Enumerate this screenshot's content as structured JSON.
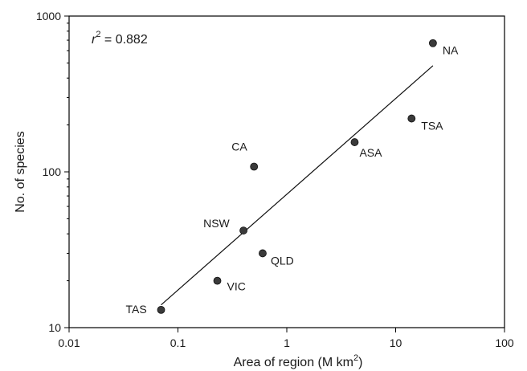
{
  "chart_data": {
    "type": "scatter",
    "title": "",
    "xlabel": "Area of region (M km",
    "xlabel_superscript": "2",
    "xlabel_suffix": ")",
    "ylabel": "No. of species",
    "xscale": "log",
    "yscale": "log",
    "xlim": [
      0.01,
      100
    ],
    "ylim": [
      10,
      1000
    ],
    "xticks": [
      0.01,
      0.1,
      1,
      10,
      100
    ],
    "xtick_labels": [
      "0.01",
      "0.1",
      "1",
      "10",
      "100"
    ],
    "yticks": [
      10,
      100,
      1000
    ],
    "ytick_labels": [
      "10",
      "100",
      "1000"
    ],
    "grid": false,
    "annotation": {
      "symbol": "r",
      "superscript": "2",
      "text": " = 0.882"
    },
    "points": [
      {
        "label": "TAS",
        "x": 0.07,
        "y": 13
      },
      {
        "label": "VIC",
        "x": 0.23,
        "y": 20
      },
      {
        "label": "NSW",
        "x": 0.4,
        "y": 42
      },
      {
        "label": "QLD",
        "x": 0.6,
        "y": 30
      },
      {
        "label": "CA",
        "x": 0.5,
        "y": 108
      },
      {
        "label": "ASA",
        "x": 4.2,
        "y": 155
      },
      {
        "label": "TSA",
        "x": 14,
        "y": 220
      },
      {
        "label": "NA",
        "x": 22,
        "y": 670
      }
    ],
    "fit_line": {
      "x": [
        0.07,
        22
      ],
      "y": [
        14,
        480
      ]
    },
    "colors": {
      "marker": "#3a3a3a",
      "axis": "#000000"
    }
  }
}
